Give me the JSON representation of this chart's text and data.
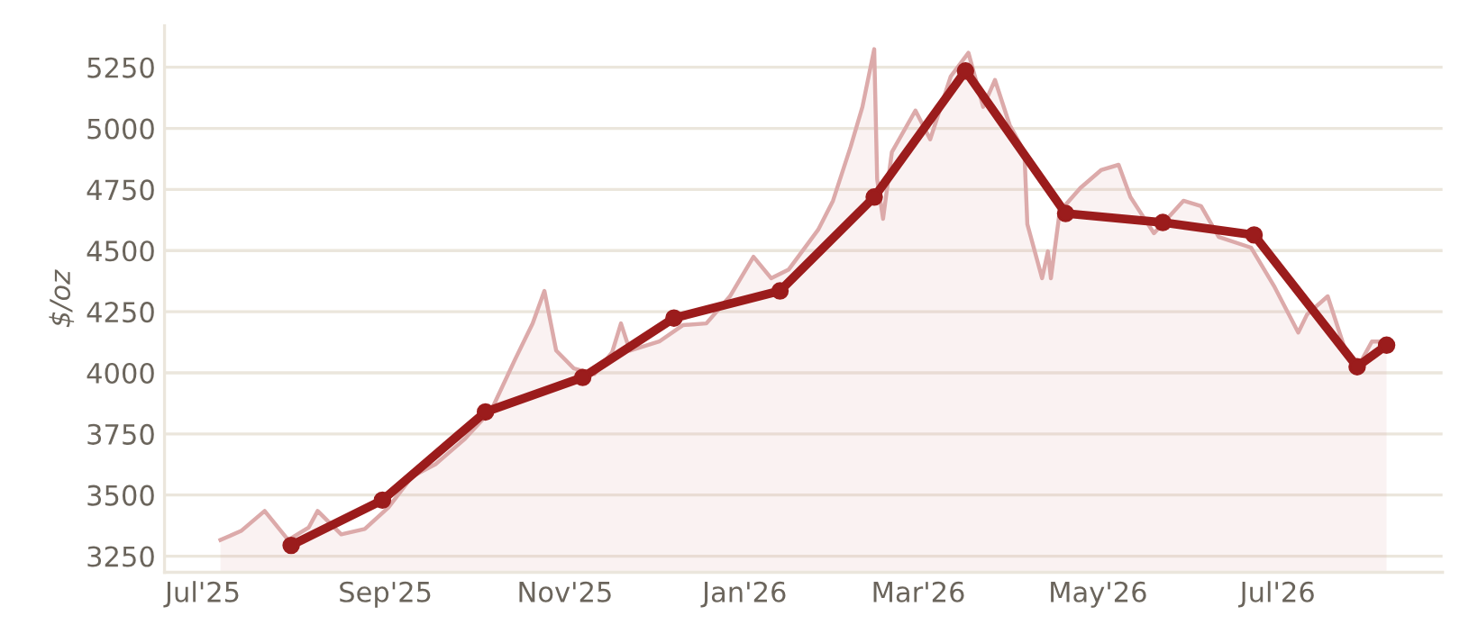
{
  "chart_data": {
    "type": "line",
    "ylabel": "$/oz",
    "grid": "y",
    "legend": false,
    "xlim": [
      "2025-06-18",
      "2026-08-26"
    ],
    "ylim": [
      3184,
      5420
    ],
    "xticks": [
      {
        "value": "2025-07-01",
        "label": "Jul'25"
      },
      {
        "value": "2025-09-01",
        "label": "Sep'25"
      },
      {
        "value": "2025-11-01",
        "label": "Nov'25"
      },
      {
        "value": "2026-01-01",
        "label": "Jan'26"
      },
      {
        "value": "2026-03-01",
        "label": "Mar'26"
      },
      {
        "value": "2026-05-01",
        "label": "May'26"
      },
      {
        "value": "2026-07-01",
        "label": "Jul'26"
      }
    ],
    "yticks": [
      3250,
      3500,
      3750,
      4000,
      4250,
      4500,
      4750,
      5000,
      5250
    ],
    "series": [
      {
        "type": "area",
        "color": "#dcaaaa",
        "marker": "none",
        "x": [
          "2025-07-07",
          "2025-07-14",
          "2025-07-22",
          "2025-07-30",
          "2025-08-06",
          "2025-08-09",
          "2025-08-17",
          "2025-08-25",
          "2025-09-02",
          "2025-09-10",
          "2025-09-18",
          "2025-09-28",
          "2025-10-07",
          "2025-10-15",
          "2025-10-21",
          "2025-10-25",
          "2025-10-29",
          "2025-11-04",
          "2025-11-11",
          "2025-11-17",
          "2025-11-20",
          "2025-11-23",
          "2025-12-03",
          "2025-12-11",
          "2025-12-19",
          "2025-12-27",
          "2026-01-04",
          "2026-01-10",
          "2026-01-16",
          "2026-01-26",
          "2026-01-31",
          "2026-02-06",
          "2026-02-10",
          "2026-02-14",
          "2026-02-15",
          "2026-02-17",
          "2026-02-20",
          "2026-02-28",
          "2026-03-05",
          "2026-03-12",
          "2026-03-18",
          "2026-03-23",
          "2026-03-27",
          "2026-04-01",
          "2026-04-06",
          "2026-04-07",
          "2026-04-12",
          "2026-04-14",
          "2026-04-15",
          "2026-04-18",
          "2026-04-25",
          "2026-05-02",
          "2026-05-08",
          "2026-05-12",
          "2026-05-20",
          "2026-05-30",
          "2026-06-05",
          "2026-06-11",
          "2026-06-22",
          "2026-06-30",
          "2026-07-08",
          "2026-07-11",
          "2026-07-18",
          "2026-07-24",
          "2026-07-28",
          "2026-08-02",
          "2026-08-07"
        ],
        "values": [
          3316,
          3353,
          3435,
          3316,
          3368,
          3435,
          3339,
          3361,
          3449,
          3575,
          3626,
          3730,
          3848,
          4054,
          4202,
          4335,
          4091,
          4018,
          3995,
          4084,
          4202,
          4091,
          4128,
          4195,
          4202,
          4313,
          4475,
          4387,
          4423,
          4586,
          4704,
          4925,
          5088,
          5324,
          4792,
          4630,
          4903,
          5073,
          4955,
          5213,
          5309,
          5088,
          5198,
          5014,
          4903,
          4608,
          4387,
          4497,
          4387,
          4660,
          4756,
          4829,
          4851,
          4719,
          4571,
          4704,
          4682,
          4556,
          4512,
          4350,
          4165,
          4239,
          4313,
          4091,
          4018,
          4128,
          4128
        ]
      },
      {
        "color": "#9b1c1c",
        "marker": "circle",
        "x": [
          "2025-07-31",
          "2025-08-31",
          "2025-10-05",
          "2025-11-07",
          "2025-12-08",
          "2026-01-13",
          "2026-02-14",
          "2026-03-17",
          "2026-04-20",
          "2026-05-23",
          "2026-06-23",
          "2026-07-28",
          "2026-08-07"
        ],
        "values": [
          3294,
          3479,
          3840,
          3981,
          4224,
          4335,
          4719,
          5235,
          4652,
          4615,
          4564,
          4025,
          4113
        ]
      }
    ]
  }
}
